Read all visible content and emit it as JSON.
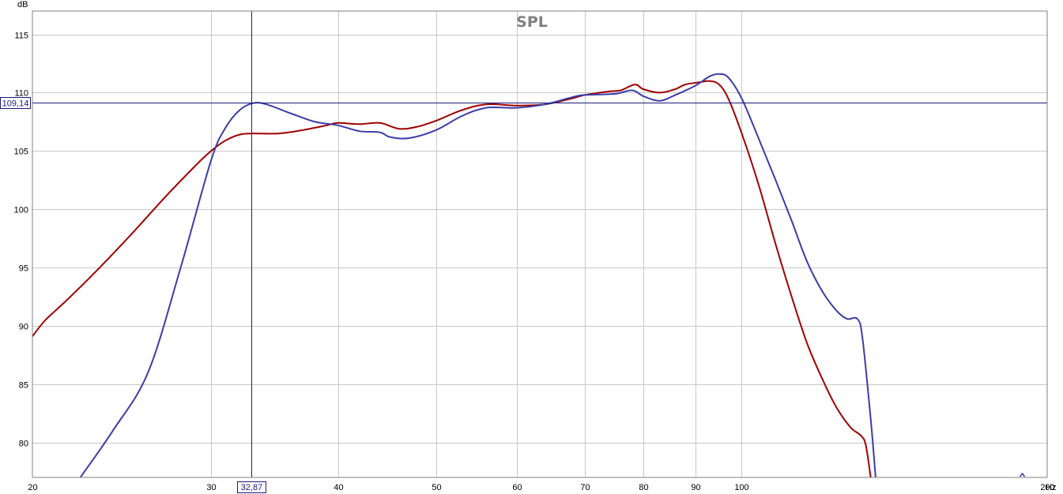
{
  "chart_data": {
    "type": "line",
    "title": "SPL",
    "ylabel": "dB",
    "xunit": "Hz",
    "xscale": "log",
    "xlim": [
      20,
      200
    ],
    "ylim": [
      77,
      117
    ],
    "grid": true,
    "x_ticks": [
      {
        "value": 20,
        "label": "20"
      },
      {
        "value": 30,
        "label": "30"
      },
      {
        "value": 40,
        "label": "40"
      },
      {
        "value": 50,
        "label": "50"
      },
      {
        "value": 60,
        "label": "60"
      },
      {
        "value": 70,
        "label": "70"
      },
      {
        "value": 80,
        "label": "80"
      },
      {
        "value": 90,
        "label": "90"
      },
      {
        "value": 100,
        "label": "100"
      },
      {
        "value": 200,
        "label": "200"
      }
    ],
    "y_ticks": [
      {
        "value": 80,
        "label": "80"
      },
      {
        "value": 85,
        "label": "85"
      },
      {
        "value": 90,
        "label": "90"
      },
      {
        "value": 95,
        "label": "95"
      },
      {
        "value": 100,
        "label": "100"
      },
      {
        "value": 105,
        "label": "105"
      },
      {
        "value": 110,
        "label": "110"
      },
      {
        "value": 115,
        "label": "115"
      }
    ],
    "cursor": {
      "x": 32.87,
      "y": 109.14,
      "x_label": "32,87",
      "y_label": "109,14"
    },
    "series": [
      {
        "color": "#a00000",
        "points": [
          [
            20.0,
            89.1
          ],
          [
            20.6,
            90.5
          ],
          [
            21.5,
            92.0
          ],
          [
            23.0,
            94.5
          ],
          [
            25.0,
            97.8
          ],
          [
            27.0,
            101.0
          ],
          [
            29.0,
            103.8
          ],
          [
            30.0,
            105.0
          ],
          [
            31.0,
            105.9
          ],
          [
            32.0,
            106.4
          ],
          [
            33.0,
            106.5
          ],
          [
            35.0,
            106.5
          ],
          [
            37.0,
            106.8
          ],
          [
            39.0,
            107.2
          ],
          [
            40.0,
            107.4
          ],
          [
            42.0,
            107.3
          ],
          [
            44.0,
            107.4
          ],
          [
            46.0,
            106.9
          ],
          [
            48.0,
            107.1
          ],
          [
            50.0,
            107.6
          ],
          [
            53.0,
            108.5
          ],
          [
            56.0,
            109.0
          ],
          [
            60.0,
            108.9
          ],
          [
            64.0,
            109.0
          ],
          [
            68.0,
            109.5
          ],
          [
            70.0,
            109.8
          ],
          [
            74.0,
            110.1
          ],
          [
            76.0,
            110.2
          ],
          [
            78.5,
            110.7
          ],
          [
            80.0,
            110.3
          ],
          [
            83.0,
            110.0
          ],
          [
            86.0,
            110.3
          ],
          [
            88.0,
            110.7
          ],
          [
            91.0,
            110.9
          ],
          [
            93.0,
            111.0
          ],
          [
            95.0,
            110.7
          ],
          [
            97.0,
            109.5
          ],
          [
            100.0,
            106.5
          ],
          [
            104.0,
            102.0
          ],
          [
            108.0,
            97.0
          ],
          [
            112.0,
            92.5
          ],
          [
            116.0,
            88.5
          ],
          [
            120.0,
            85.5
          ],
          [
            124.0,
            83.0
          ],
          [
            128.0,
            81.3
          ],
          [
            131.0,
            80.6
          ],
          [
            132.5,
            79.8
          ],
          [
            134.0,
            77.0
          ]
        ]
      },
      {
        "color": "#3c3ca8",
        "points": [
          [
            22.3,
            77.0
          ],
          [
            24.0,
            81.0
          ],
          [
            26.0,
            86.0
          ],
          [
            28.0,
            95.0
          ],
          [
            30.0,
            104.2
          ],
          [
            31.0,
            107.0
          ],
          [
            32.0,
            108.5
          ],
          [
            33.0,
            109.1
          ],
          [
            34.0,
            109.0
          ],
          [
            36.0,
            108.2
          ],
          [
            38.0,
            107.5
          ],
          [
            40.0,
            107.2
          ],
          [
            42.0,
            106.7
          ],
          [
            44.0,
            106.6
          ],
          [
            45.0,
            106.2
          ],
          [
            47.0,
            106.1
          ],
          [
            50.0,
            106.8
          ],
          [
            53.0,
            108.0
          ],
          [
            56.0,
            108.7
          ],
          [
            60.0,
            108.7
          ],
          [
            64.0,
            109.0
          ],
          [
            68.0,
            109.6
          ],
          [
            70.0,
            109.8
          ],
          [
            75.0,
            109.9
          ],
          [
            78.0,
            110.2
          ],
          [
            80.0,
            109.7
          ],
          [
            83.0,
            109.3
          ],
          [
            86.0,
            109.8
          ],
          [
            90.0,
            110.6
          ],
          [
            93.0,
            111.4
          ],
          [
            95.0,
            111.6
          ],
          [
            97.0,
            111.3
          ],
          [
            100.0,
            109.5
          ],
          [
            104.0,
            106.0
          ],
          [
            108.0,
            102.5
          ],
          [
            112.0,
            99.0
          ],
          [
            116.0,
            95.5
          ],
          [
            120.0,
            93.0
          ],
          [
            124.0,
            91.3
          ],
          [
            127.0,
            90.6
          ],
          [
            130.0,
            90.6
          ],
          [
            131.5,
            89.0
          ],
          [
            134.0,
            82.0
          ],
          [
            135.5,
            77.0
          ]
        ]
      }
    ]
  }
}
